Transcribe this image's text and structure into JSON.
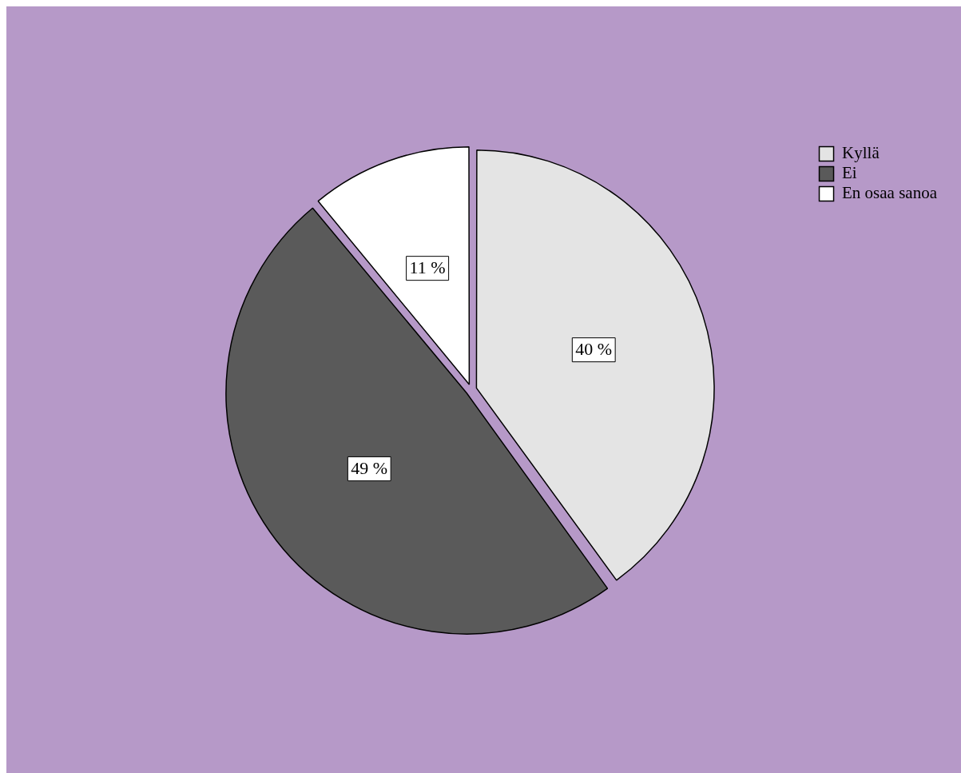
{
  "chart_data": {
    "type": "pie",
    "categories": [
      "Kyllä",
      "Ei",
      "En osaa sanoa"
    ],
    "values": [
      40,
      49,
      11
    ],
    "colors": [
      "#e4e4e4",
      "#5a5a5a",
      "#ffffff"
    ],
    "value_labels": [
      "40 %",
      "49 %",
      "11 %"
    ],
    "legend": "top right"
  }
}
